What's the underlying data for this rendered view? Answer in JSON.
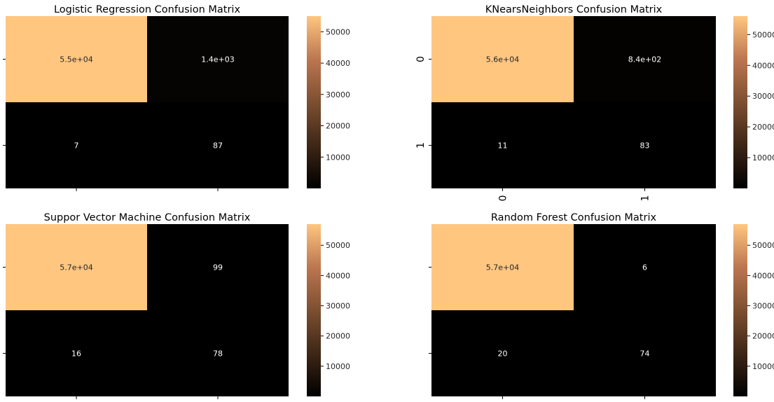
{
  "colormap": {
    "name": "copper",
    "stops": [
      "#000000",
      "#3e2716",
      "#7d4f31",
      "#bc7650",
      "#ffc680"
    ]
  },
  "chart_data": [
    {
      "type": "heatmap",
      "title": "Logistic Regression Confusion Matrix",
      "matrix": [
        [
          55000,
          1400
        ],
        [
          7,
          87
        ]
      ],
      "annotations": [
        [
          "5.5e+04",
          "1.4e+03"
        ],
        [
          "7",
          "87"
        ]
      ],
      "x_tick_labels": [
        "",
        ""
      ],
      "y_tick_labels": [
        "",
        ""
      ],
      "colorbar": {
        "ticks": [
          "10000",
          "20000",
          "30000",
          "40000",
          "50000"
        ],
        "range": [
          7,
          55000
        ]
      }
    },
    {
      "type": "heatmap",
      "title": "KNearsNeighbors Confusion Matrix",
      "matrix": [
        [
          56000,
          840
        ],
        [
          11,
          83
        ]
      ],
      "annotations": [
        [
          "5.6e+04",
          "8.4e+02"
        ],
        [
          "11",
          "83"
        ]
      ],
      "x_tick_labels": [
        "0",
        "1"
      ],
      "y_tick_labels": [
        "0",
        "1"
      ],
      "colorbar": {
        "ticks": [
          "10000",
          "20000",
          "30000",
          "40000",
          "50000"
        ],
        "range": [
          11,
          56000
        ]
      }
    },
    {
      "type": "heatmap",
      "title": "Suppor Vector Machine Confusion Matrix",
      "matrix": [
        [
          57000,
          99
        ],
        [
          16,
          78
        ]
      ],
      "annotations": [
        [
          "5.7e+04",
          "99"
        ],
        [
          "16",
          "78"
        ]
      ],
      "x_tick_labels": [
        "",
        ""
      ],
      "y_tick_labels": [
        "",
        ""
      ],
      "colorbar": {
        "ticks": [
          "10000",
          "20000",
          "30000",
          "40000",
          "50000"
        ],
        "range": [
          16,
          57000
        ]
      }
    },
    {
      "type": "heatmap",
      "title": "Random Forest Confusion Matrix",
      "matrix": [
        [
          57000,
          6
        ],
        [
          20,
          74
        ]
      ],
      "annotations": [
        [
          "5.7e+04",
          "6"
        ],
        [
          "20",
          "74"
        ]
      ],
      "x_tick_labels": [
        "",
        ""
      ],
      "y_tick_labels": [
        "",
        ""
      ],
      "colorbar": {
        "ticks": [
          "10000",
          "20000",
          "30000",
          "40000",
          "50000"
        ],
        "range": [
          6,
          57000
        ]
      }
    }
  ]
}
